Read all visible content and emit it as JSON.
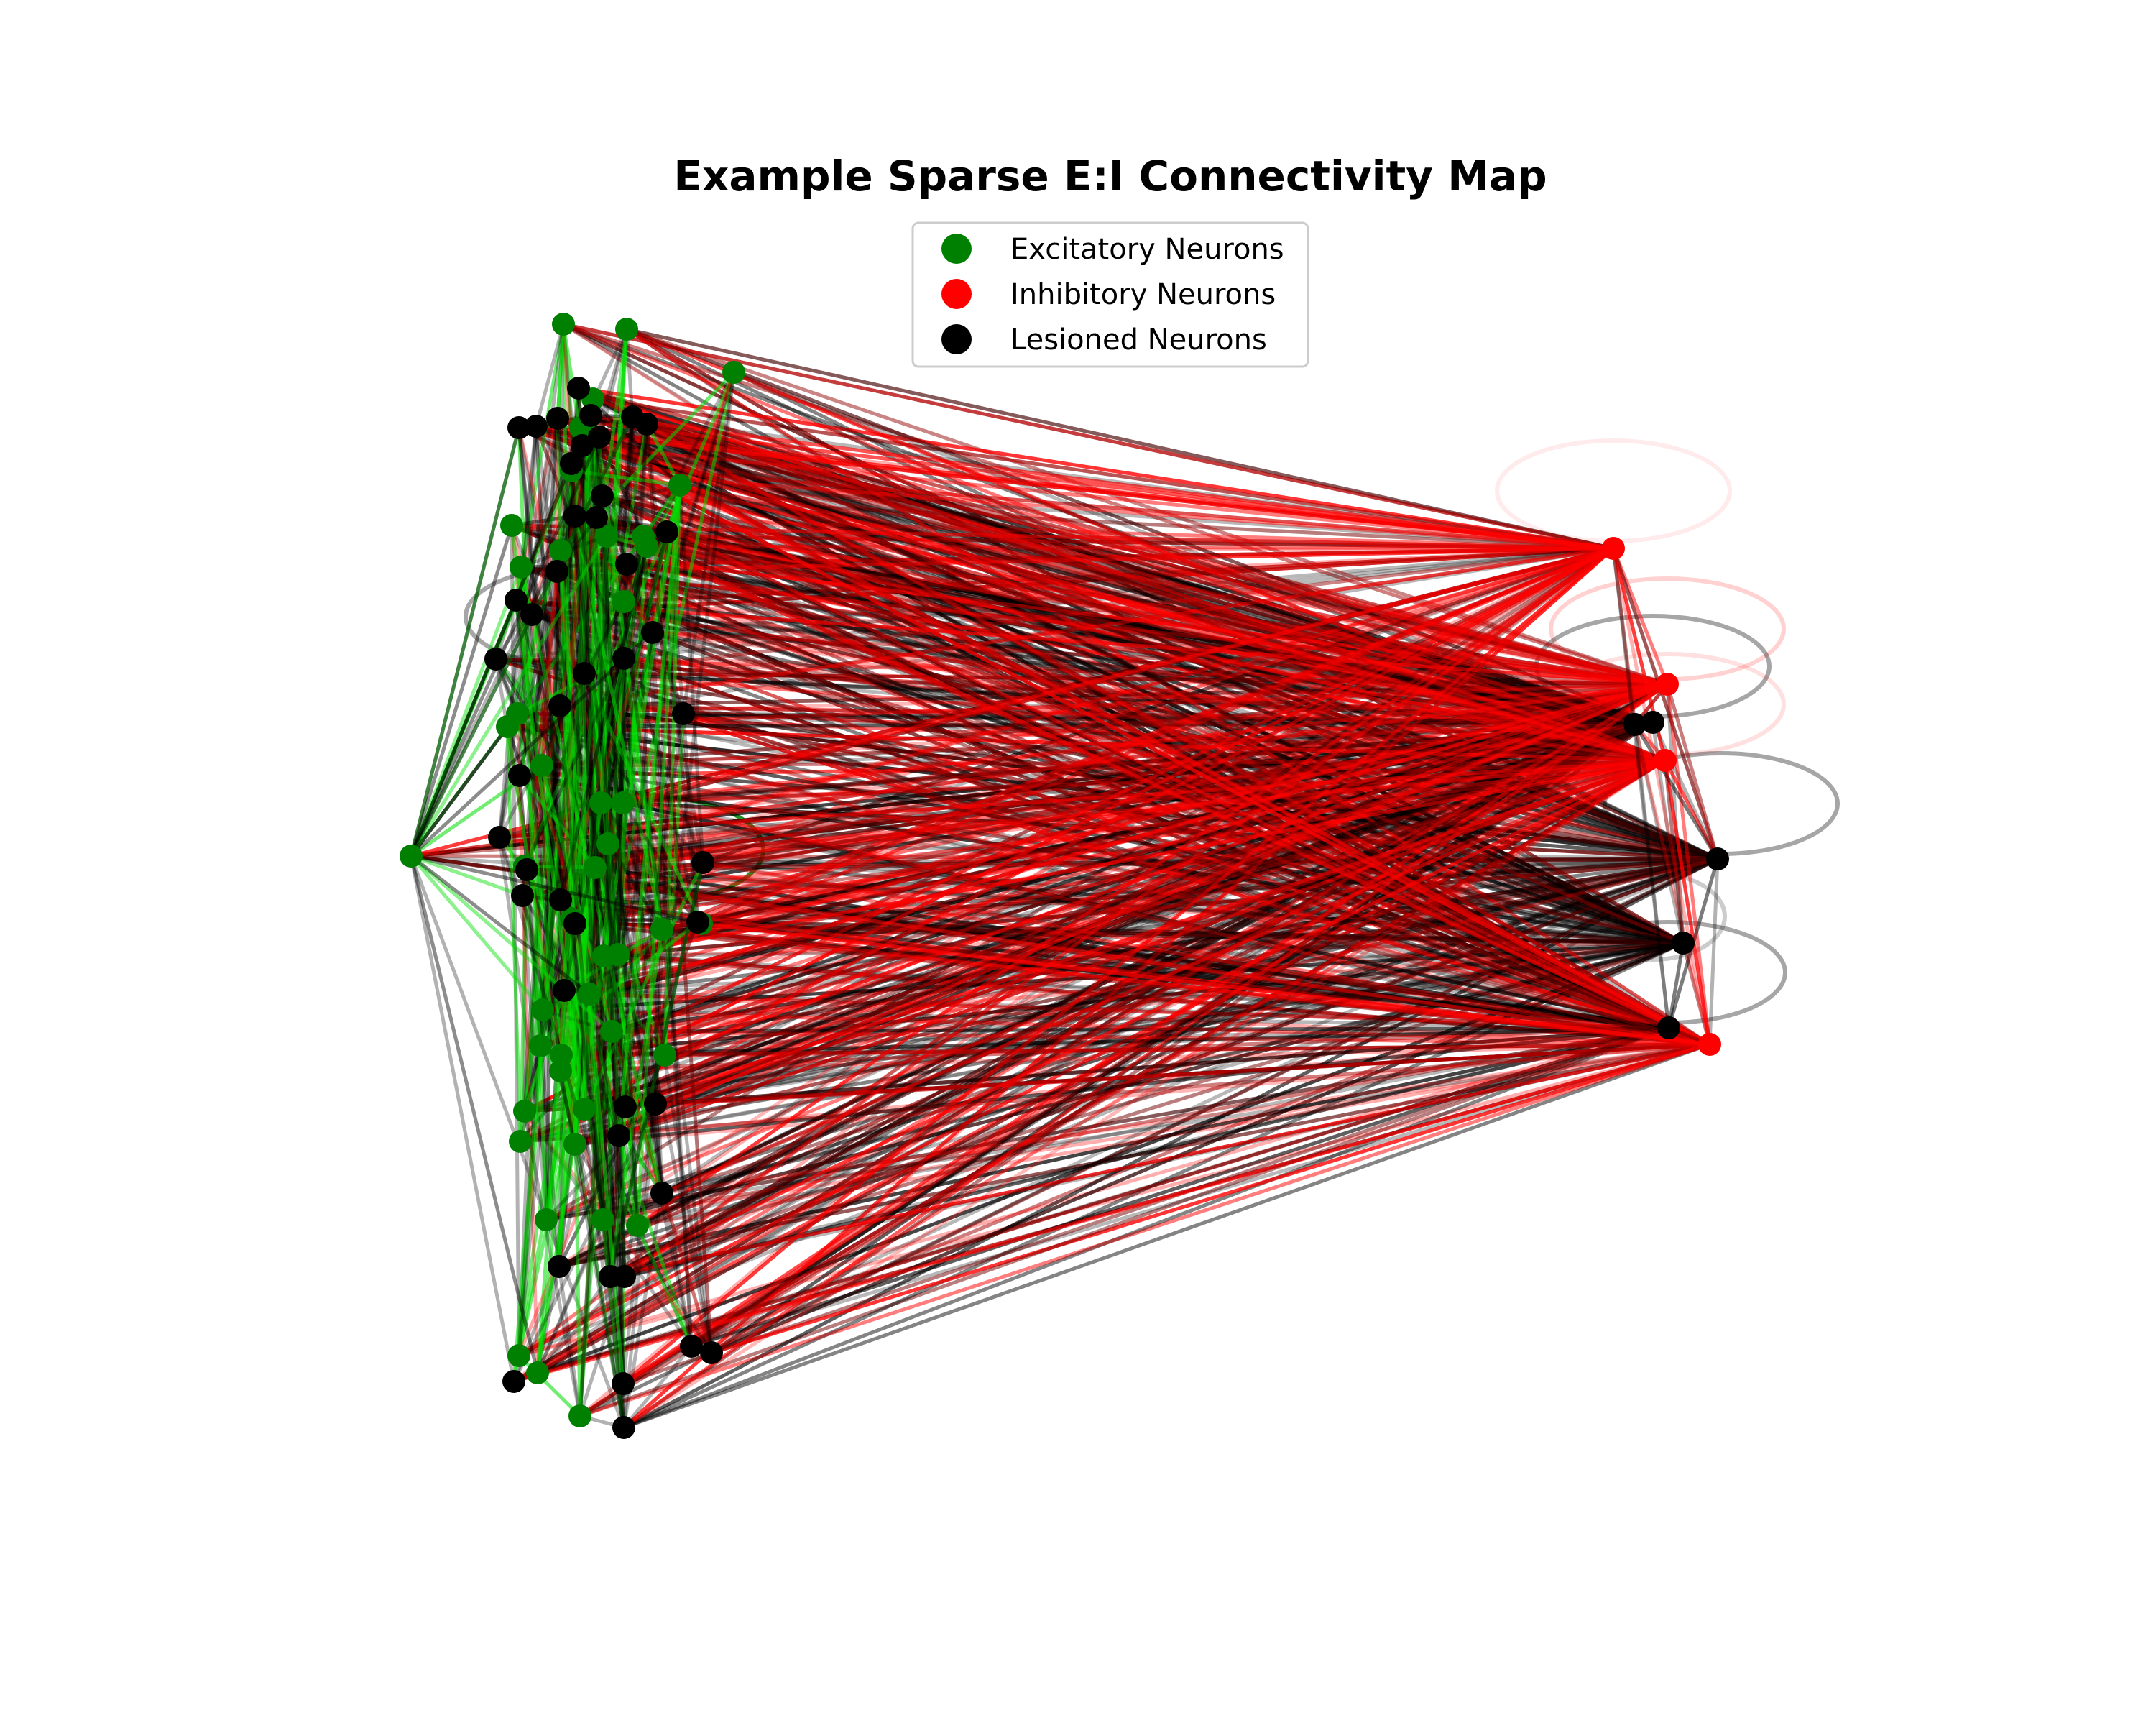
{
  "chart_data": {
    "type": "network",
    "title": "Example Sparse E:I Connectivity Map",
    "legend": {
      "placement": "top-center",
      "entries": [
        {
          "label": "Excitatory Neurons",
          "color": "#008000"
        },
        {
          "label": "Inhibitory Neurons",
          "color": "#ff0000"
        },
        {
          "label": "Lesioned Neurons",
          "color": "#000000"
        }
      ]
    },
    "colors": {
      "excitatory": "#008000",
      "excitatory_edge": "#00dd00",
      "inhibitory": "#ff0000",
      "lesioned": "#000000"
    },
    "node_counts": {
      "excitatory": 46,
      "inhibitory": 4,
      "lesioned": 50
    },
    "axes_visible": false,
    "grid": false
  }
}
